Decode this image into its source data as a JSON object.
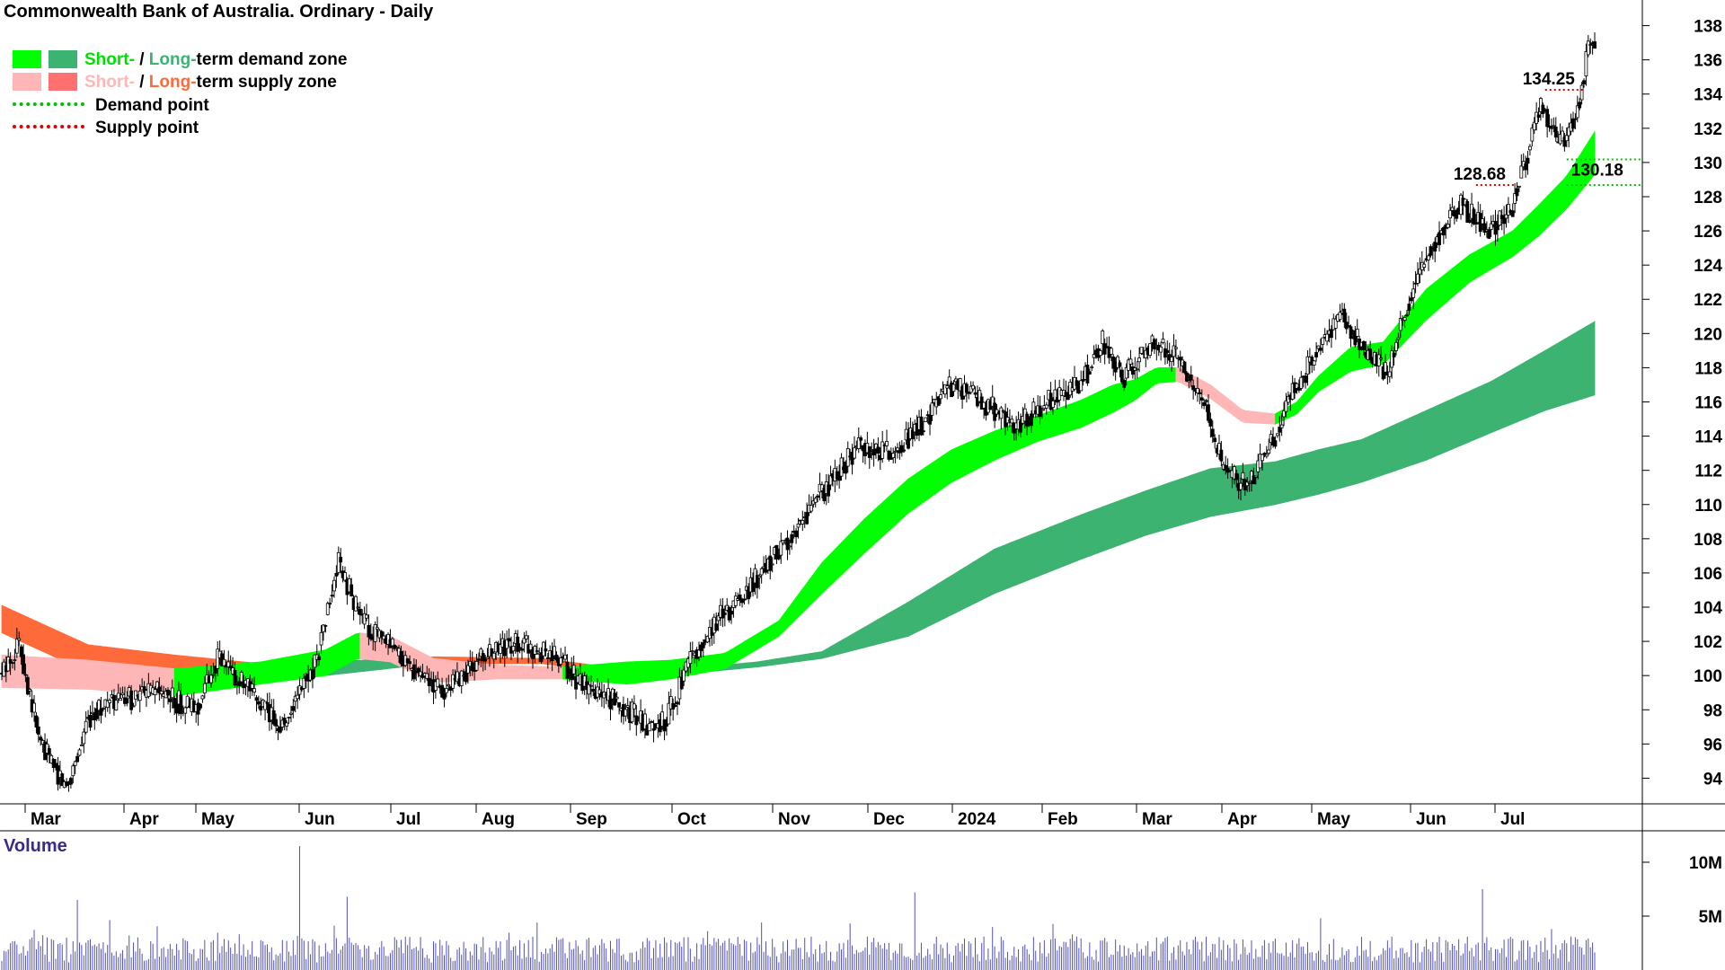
{
  "title": "Commonwealth Bank of Australia. Ordinary - Daily",
  "legend": {
    "demand_zone": {
      "short": "Short-",
      "sep": " / ",
      "long": "Long-",
      "rest": "term demand zone"
    },
    "supply_zone": {
      "short": "Short-",
      "sep": " / ",
      "long": "Long-",
      "rest": "term supply zone"
    },
    "demand_point": "Demand point",
    "supply_point": "Supply point"
  },
  "colors": {
    "short_demand": "#00ff00",
    "long_demand": "#3cb371",
    "short_supply": "#ffb6b6",
    "long_supply": "#ff6a3a",
    "demand_point": "#00c000",
    "supply_point": "#e00000",
    "volume": "#5050c0"
  },
  "chart_data": {
    "type": "candlestick",
    "y_axis": {
      "ticks": [
        94,
        96,
        98,
        100,
        102,
        104,
        106,
        108,
        110,
        112,
        114,
        116,
        118,
        120,
        122,
        124,
        126,
        128,
        130,
        132,
        134,
        136,
        138
      ],
      "range": [
        92.5,
        139.5
      ]
    },
    "x_axis": {
      "labels": [
        "Mar",
        "Apr",
        "May",
        "Jun",
        "Jul",
        "Aug",
        "Sep",
        "Oct",
        "Nov",
        "Dec",
        "2024",
        "Feb",
        "Mar",
        "Apr",
        "May",
        "Jun",
        "Jul"
      ]
    },
    "price_path": [
      [
        0,
        100
      ],
      [
        8,
        102
      ],
      [
        18,
        96
      ],
      [
        30,
        93.5
      ],
      [
        42,
        98
      ],
      [
        55,
        98.5
      ],
      [
        72,
        99
      ],
      [
        90,
        98
      ],
      [
        100,
        101
      ],
      [
        115,
        99
      ],
      [
        130,
        97
      ],
      [
        146,
        101
      ],
      [
        156,
        106.5
      ],
      [
        168,
        103
      ],
      [
        185,
        101
      ],
      [
        205,
        99
      ],
      [
        222,
        101
      ],
      [
        240,
        102
      ],
      [
        258,
        101
      ],
      [
        272,
        99
      ],
      [
        285,
        98.5
      ],
      [
        300,
        97
      ],
      [
        308,
        97.5
      ],
      [
        318,
        100.5
      ],
      [
        330,
        103
      ],
      [
        345,
        105
      ],
      [
        358,
        107
      ],
      [
        370,
        109
      ],
      [
        385,
        111.5
      ],
      [
        398,
        113.5
      ],
      [
        412,
        113
      ],
      [
        425,
        114.5
      ],
      [
        440,
        117
      ],
      [
        455,
        116
      ],
      [
        470,
        114.5
      ],
      [
        485,
        116
      ],
      [
        500,
        117
      ],
      [
        510,
        119.5
      ],
      [
        520,
        117.5
      ],
      [
        535,
        119.5
      ],
      [
        545,
        118.5
      ],
      [
        558,
        116
      ],
      [
        566,
        112
      ],
      [
        578,
        111
      ],
      [
        590,
        114
      ],
      [
        600,
        117
      ],
      [
        610,
        119
      ],
      [
        622,
        121
      ],
      [
        632,
        119
      ],
      [
        642,
        117.5
      ],
      [
        652,
        122
      ],
      [
        662,
        125
      ],
      [
        675,
        127.5
      ],
      [
        690,
        126
      ],
      [
        700,
        127.5
      ],
      [
        708,
        131
      ],
      [
        714,
        133.5
      ],
      [
        718,
        132
      ],
      [
        724,
        131
      ],
      [
        730,
        133
      ],
      [
        735,
        136.5
      ],
      [
        738,
        137.2
      ]
    ],
    "short_zone": {
      "top": [
        [
          0,
          101.2
        ],
        [
          40,
          100.9
        ],
        [
          80,
          100.4
        ],
        [
          120,
          100.8
        ],
        [
          150,
          101.5
        ],
        [
          165,
          102.5
        ],
        [
          180,
          102.3
        ],
        [
          200,
          101
        ],
        [
          230,
          100.6
        ],
        [
          260,
          100.5
        ],
        [
          290,
          100.8
        ],
        [
          310,
          100.9
        ],
        [
          335,
          101.3
        ],
        [
          360,
          103.2
        ],
        [
          380,
          106.6
        ],
        [
          400,
          109.2
        ],
        [
          420,
          111.5
        ],
        [
          440,
          113.2
        ],
        [
          460,
          114.3
        ],
        [
          480,
          115.2
        ],
        [
          500,
          116.1
        ],
        [
          515,
          117
        ],
        [
          525,
          117.3
        ],
        [
          535,
          118
        ],
        [
          545,
          118
        ],
        [
          560,
          117
        ],
        [
          575,
          115.5
        ],
        [
          590,
          115.3
        ],
        [
          600,
          116
        ],
        [
          610,
          117.5
        ],
        [
          625,
          119.2
        ],
        [
          640,
          119.5
        ],
        [
          660,
          122.6
        ],
        [
          680,
          124.6
        ],
        [
          700,
          126
        ],
        [
          712,
          127.5
        ],
        [
          725,
          129.2
        ],
        [
          738,
          131.8
        ]
      ],
      "bottom": [
        [
          0,
          99.3
        ],
        [
          40,
          99.2
        ],
        [
          80,
          98.8
        ],
        [
          120,
          99.5
        ],
        [
          150,
          100
        ],
        [
          165,
          101
        ],
        [
          180,
          100.8
        ],
        [
          200,
          99.6
        ],
        [
          230,
          99.8
        ],
        [
          260,
          99.8
        ],
        [
          290,
          99.5
        ],
        [
          310,
          99.8
        ],
        [
          335,
          100.4
        ],
        [
          360,
          102.3
        ],
        [
          380,
          104.8
        ],
        [
          400,
          107.2
        ],
        [
          420,
          109.5
        ],
        [
          440,
          111.3
        ],
        [
          460,
          112.6
        ],
        [
          480,
          113.7
        ],
        [
          500,
          114.5
        ],
        [
          515,
          115.4
        ],
        [
          525,
          116.1
        ],
        [
          535,
          117.1
        ],
        [
          545,
          117.2
        ],
        [
          560,
          116.2
        ],
        [
          575,
          114.8
        ],
        [
          590,
          114.7
        ],
        [
          600,
          115.3
        ],
        [
          610,
          116.6
        ],
        [
          625,
          117.8
        ],
        [
          640,
          118.2
        ],
        [
          660,
          120.8
        ],
        [
          680,
          123
        ],
        [
          700,
          124.5
        ],
        [
          712,
          125.7
        ],
        [
          725,
          127.3
        ],
        [
          738,
          129.3
        ]
      ]
    },
    "long_zone": {
      "top": [
        [
          0,
          104.1
        ],
        [
          40,
          101.8
        ],
        [
          80,
          101.2
        ],
        [
          120,
          100.7
        ],
        [
          150,
          100.8
        ],
        [
          200,
          101.1
        ],
        [
          250,
          101
        ],
        [
          300,
          100.2
        ],
        [
          350,
          100.8
        ],
        [
          380,
          101.4
        ],
        [
          420,
          104.3
        ],
        [
          460,
          107.4
        ],
        [
          500,
          109.4
        ],
        [
          530,
          110.8
        ],
        [
          560,
          112.1
        ],
        [
          590,
          112.5
        ],
        [
          610,
          113.2
        ],
        [
          630,
          113.8
        ],
        [
          660,
          115.5
        ],
        [
          690,
          117.2
        ],
        [
          715,
          119
        ],
        [
          738,
          120.7
        ]
      ],
      "bottom": [
        [
          0,
          102.5
        ],
        [
          40,
          100.2
        ],
        [
          80,
          99.9
        ],
        [
          120,
          99.6
        ],
        [
          150,
          100
        ],
        [
          200,
          100.7
        ],
        [
          250,
          100.7
        ],
        [
          300,
          99.9
        ],
        [
          350,
          100.5
        ],
        [
          380,
          101
        ],
        [
          420,
          102.3
        ],
        [
          460,
          104.8
        ],
        [
          500,
          106.8
        ],
        [
          530,
          108.2
        ],
        [
          560,
          109.3
        ],
        [
          590,
          110
        ],
        [
          610,
          110.6
        ],
        [
          630,
          111.3
        ],
        [
          660,
          112.6
        ],
        [
          690,
          114.2
        ],
        [
          715,
          115.5
        ],
        [
          738,
          116.4
        ]
      ]
    },
    "points": [
      {
        "kind": "supply",
        "label": "134.25",
        "value": 134.25,
        "from_index": 715
      },
      {
        "kind": "supply",
        "label": "128.68",
        "value": 128.68,
        "from_index": 683
      },
      {
        "kind": "demand",
        "label": "130.18",
        "value": 130.18,
        "from_index": 725
      },
      {
        "kind": "demand",
        "label": "",
        "value": 128.68,
        "from_index": 725
      }
    ],
    "volume": {
      "label": "Volume",
      "ticks": [
        {
          "label": "10M",
          "value": 10000000
        },
        {
          "label": "5M",
          "value": 5000000
        }
      ],
      "spikes": [
        [
          35,
          6500000
        ],
        [
          138,
          11500000
        ],
        [
          160,
          6800000
        ],
        [
          423,
          7200000
        ],
        [
          686,
          7500000
        ],
        [
          718,
          3800000
        ]
      ]
    }
  }
}
